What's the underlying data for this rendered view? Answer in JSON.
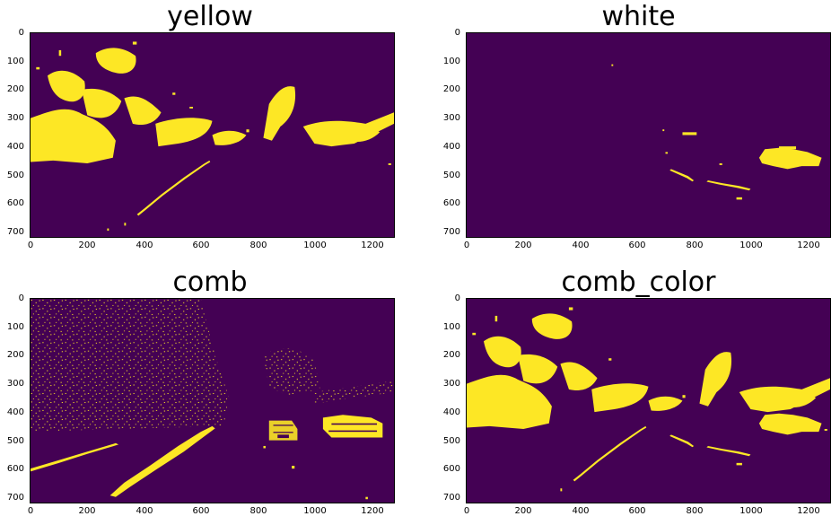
{
  "colors": {
    "background": "#440154",
    "foreground": "#fde725"
  },
  "x_ticks": [
    "0",
    "200",
    "400",
    "600",
    "800",
    "1000",
    "1200"
  ],
  "y_ticks": [
    "0",
    "100",
    "200",
    "300",
    "400",
    "500",
    "600",
    "700"
  ],
  "panels": [
    {
      "title": "yellow"
    },
    {
      "title": "white"
    },
    {
      "title": "comb"
    },
    {
      "title": "comb_color"
    }
  ]
}
